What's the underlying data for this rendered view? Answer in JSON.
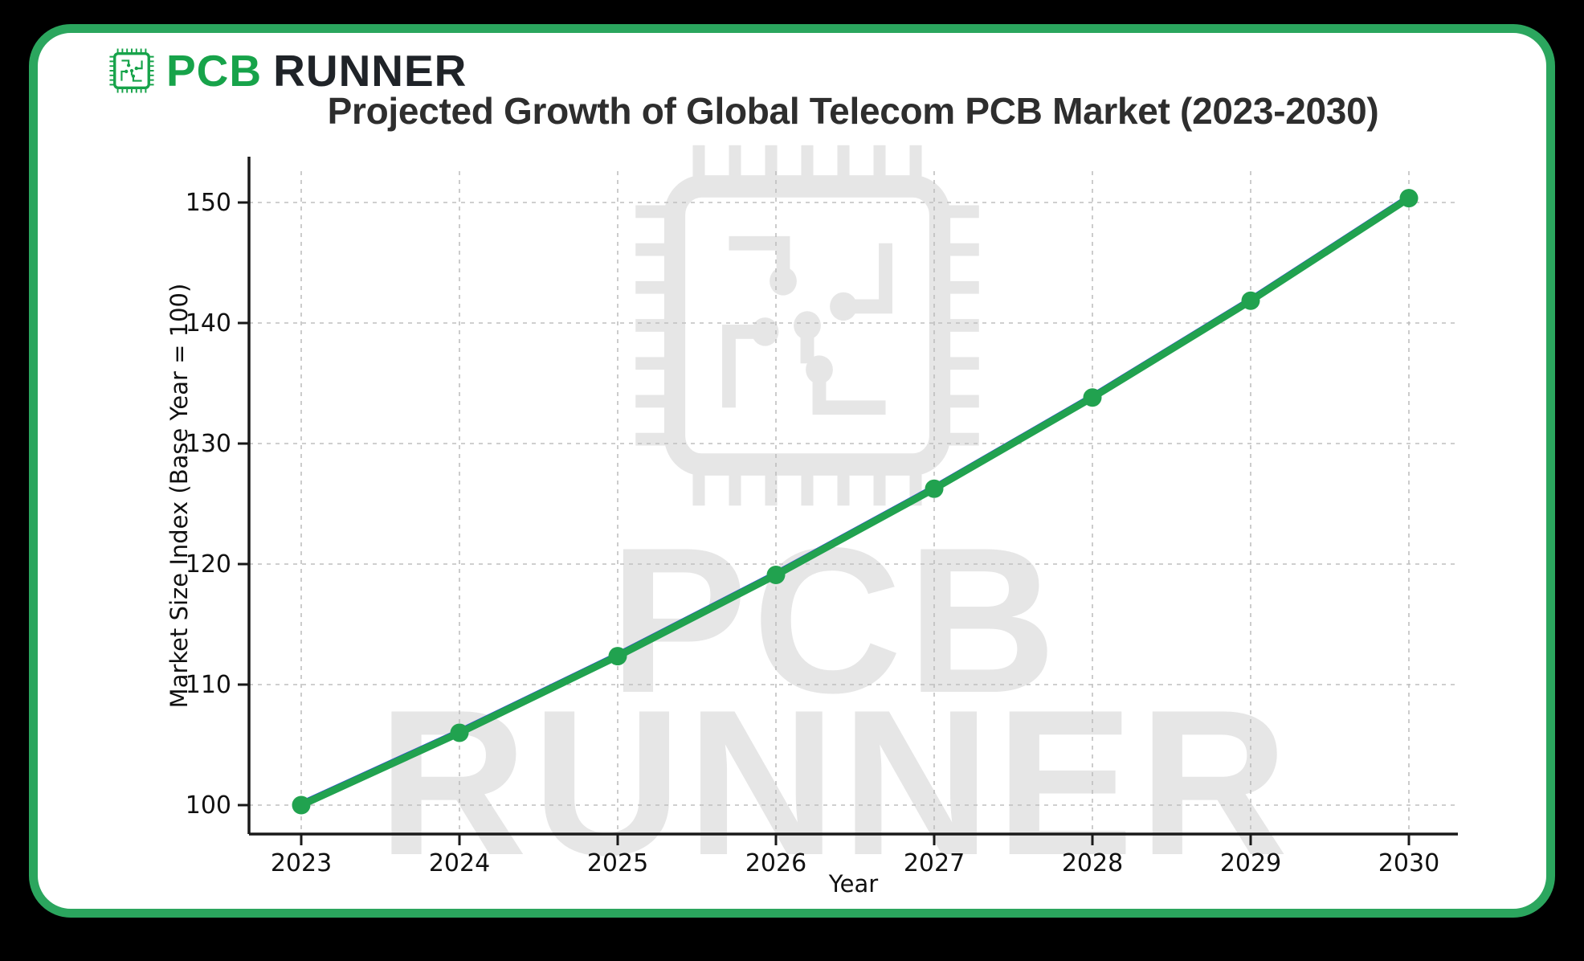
{
  "frame": {
    "background": "#000000",
    "card_background": "#ffffff",
    "card_border_color": "#2ba65e"
  },
  "logo": {
    "chip_icon": "pcb-chip-icon",
    "brand_primary": "PCB",
    "brand_secondary": "RUNNER",
    "primary_color": "#17a34a",
    "secondary_color": "#1f2328"
  },
  "title": {
    "text": "Projected Growth of Global Telecom PCB Market (2023-2030)",
    "color": "#2e2e2e"
  },
  "watermark": {
    "chip_icon": "pcb-chip-watermark-icon",
    "line1": "PCB",
    "line2": "RUNNER",
    "color": "#e6e6e6"
  },
  "chart_data": {
    "type": "line",
    "title": "Projected Growth of Global Telecom PCB Market (2023-2030)",
    "xlabel": "Year",
    "ylabel": "Market Size Index (Base Year = 100)",
    "x": [
      2023,
      2024,
      2025,
      2026,
      2027,
      2028,
      2029,
      2030
    ],
    "series": [
      {
        "name": "Market Size Index (Base Year = 100)",
        "color": "#21a24f",
        "marker": "circle",
        "values": [
          100,
          106,
          112.36,
          119.1,
          126.25,
          133.82,
          141.85,
          150.36
        ]
      }
    ],
    "underlay_line_color": "#2d50c8",
    "yticks": [
      100,
      110,
      120,
      130,
      140,
      150
    ],
    "ylim": [
      96.5,
      153.5
    ],
    "grid": true,
    "grid_style": "dashed",
    "axis_color": "#1a1a1a",
    "grid_color": "#bfbfbf",
    "legend": "none"
  }
}
